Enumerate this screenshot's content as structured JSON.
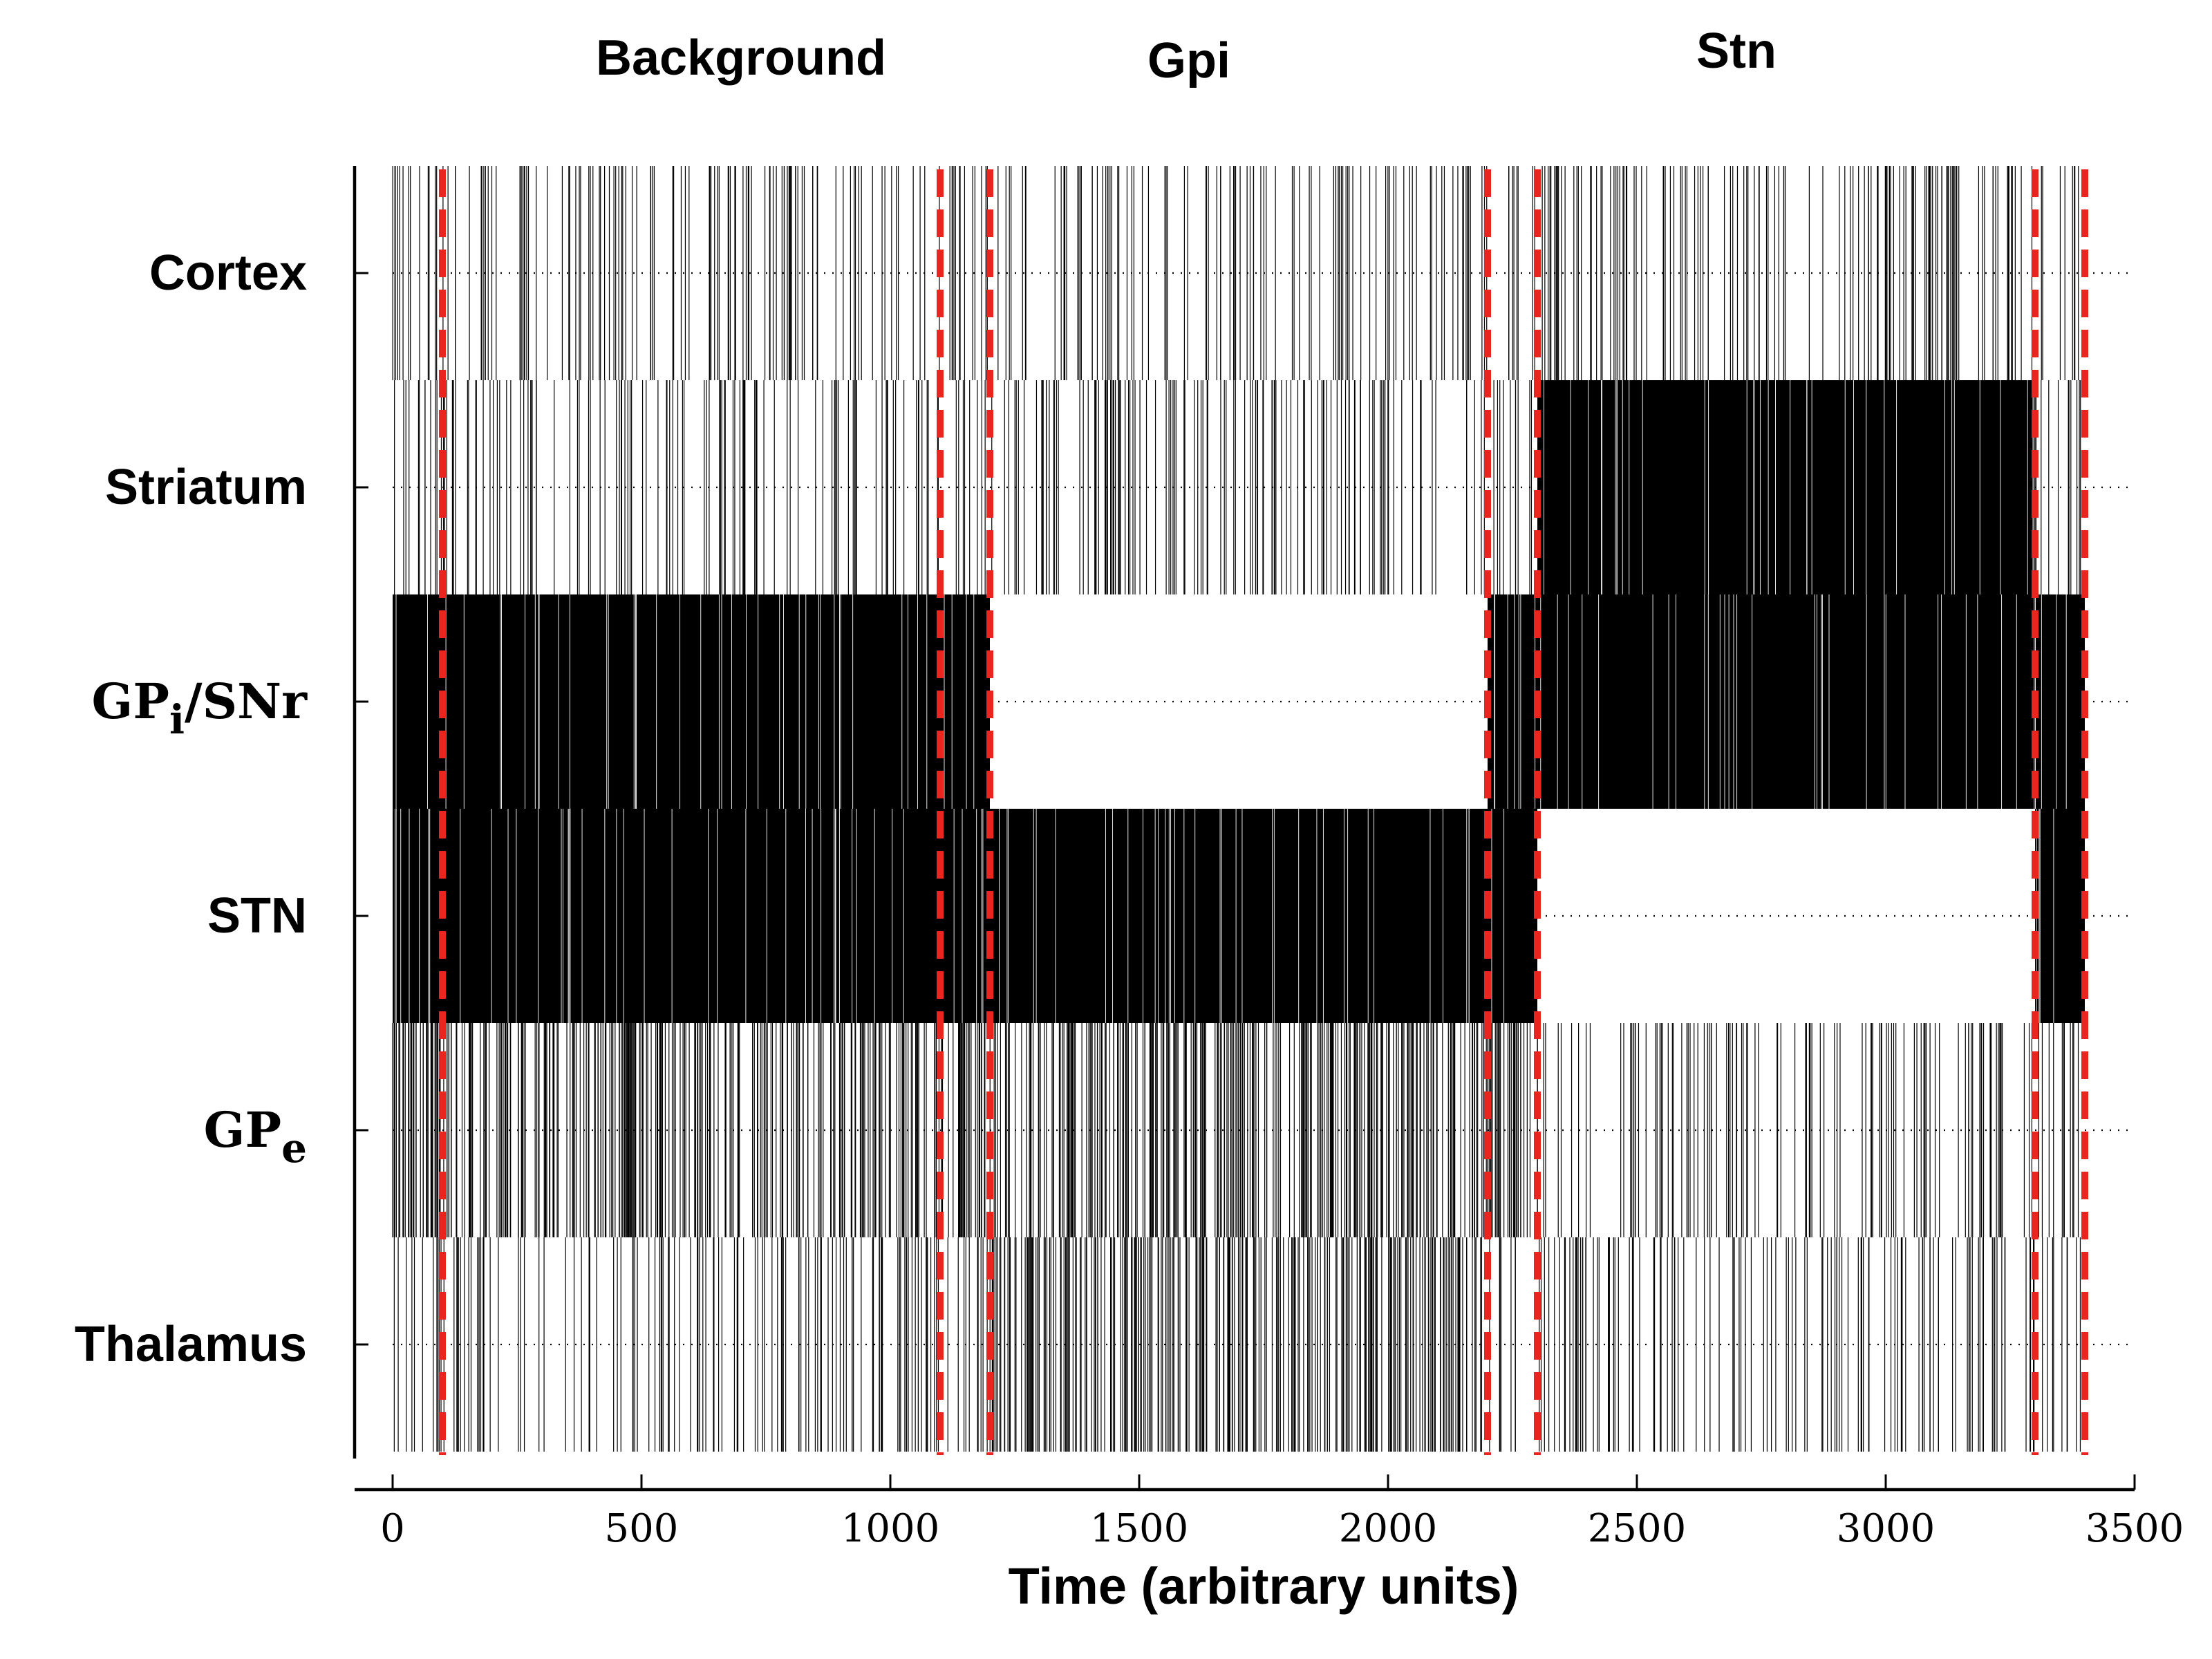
{
  "chart_data": {
    "type": "raster",
    "title": "",
    "xlabel": "Time (arbitrary units)",
    "ylabel": "",
    "xlim": [
      0,
      3500
    ],
    "x_ticks": [
      0,
      500,
      1000,
      1500,
      2000,
      2500,
      3000,
      3500
    ],
    "x_tick_labels": [
      "0",
      "500",
      "1000",
      "1500",
      "2000",
      "2500",
      "3000",
      "3500"
    ],
    "spike_data_range": [
      0,
      3400
    ],
    "phase_labels": [
      {
        "text": "Background",
        "x": 700
      },
      {
        "text": "Gpi",
        "x": 1600
      },
      {
        "text": "Stn",
        "x": 2700
      }
    ],
    "phase_boundaries": [
      100,
      1100,
      1200,
      2200,
      2300,
      3300,
      3400
    ],
    "boundary_color": "#e8251f",
    "boundary_style": "dashed",
    "grid": "dotted horizontal at each row center",
    "rows": [
      {
        "id": "cortex",
        "label": "Cortex",
        "label_type": "plain",
        "density": [
          {
            "from": 0,
            "to": 3400,
            "level": "sparse"
          }
        ]
      },
      {
        "id": "striatum",
        "label": "Striatum",
        "label_type": "plain",
        "density": [
          {
            "from": 0,
            "to": 2300,
            "level": "sparse"
          },
          {
            "from": 2300,
            "to": 3300,
            "level": "dense"
          },
          {
            "from": 3300,
            "to": 3400,
            "level": "sparse"
          }
        ]
      },
      {
        "id": "gpi_snr",
        "label": "GP",
        "label_sub": "i",
        "label_suffix": "/SNr",
        "label_type": "math",
        "density": [
          {
            "from": 0,
            "to": 1200,
            "level": "dense"
          },
          {
            "from": 1200,
            "to": 2200,
            "level": "silent"
          },
          {
            "from": 2200,
            "to": 3400,
            "level": "dense"
          }
        ]
      },
      {
        "id": "stn",
        "label": "STN",
        "label_type": "plain",
        "density": [
          {
            "from": 0,
            "to": 2300,
            "level": "dense"
          },
          {
            "from": 2300,
            "to": 3300,
            "level": "silent"
          },
          {
            "from": 3300,
            "to": 3400,
            "level": "dense"
          }
        ]
      },
      {
        "id": "gpe",
        "label": "GP",
        "label_sub": "e",
        "label_type": "math",
        "density": [
          {
            "from": 0,
            "to": 2300,
            "level": "medium"
          },
          {
            "from": 2300,
            "to": 3400,
            "level": "sparse"
          }
        ]
      },
      {
        "id": "thalamus",
        "label": "Thalamus",
        "label_type": "plain",
        "density": [
          {
            "from": 0,
            "to": 1200,
            "level": "sparse"
          },
          {
            "from": 1200,
            "to": 2200,
            "level": "medium"
          },
          {
            "from": 2200,
            "to": 3400,
            "level": "sparse"
          }
        ]
      }
    ]
  }
}
